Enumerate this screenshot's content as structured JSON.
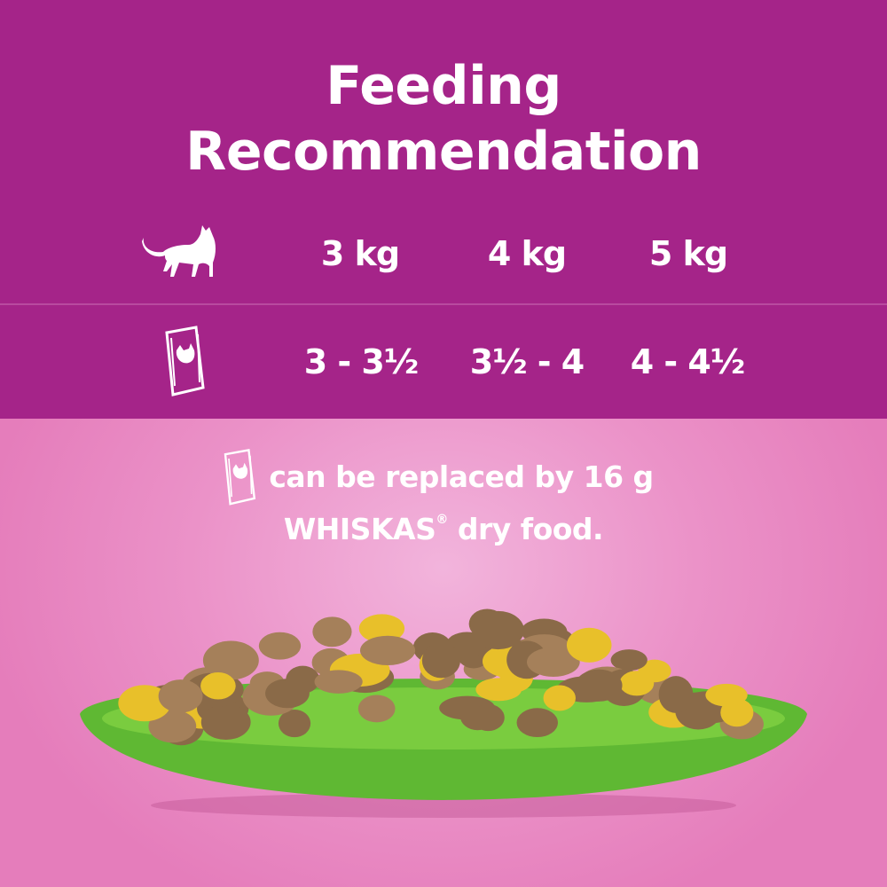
{
  "title": {
    "line1": "Feeding",
    "line2": "Recommendation"
  },
  "table": {
    "weight_icon": "cat-icon",
    "portion_icon": "pouch-icon",
    "weights": [
      "3 kg",
      "4 kg",
      "5 kg"
    ],
    "portions": [
      "3 - 3½",
      "3½ - 4",
      "4 - 4½"
    ]
  },
  "note": {
    "icon": "pouch-icon",
    "line1": "can be replaced by 16 g",
    "brand": "WHISKAS",
    "registered": "®",
    "line2_rest": " dry food."
  },
  "colors": {
    "header_bg": "#a52489",
    "background": "#e57dbb",
    "plate": "#6cc23a"
  }
}
